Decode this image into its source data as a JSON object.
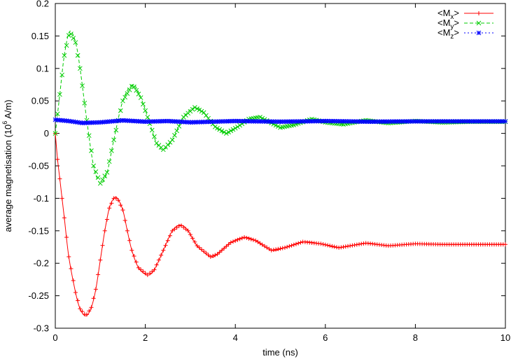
{
  "chart_data": {
    "type": "line",
    "title": "",
    "xlabel": "time (ns)",
    "ylabel_parts": {
      "prefix": "average magnetisation (10",
      "exponent": "6",
      "suffix": " A/m)"
    },
    "xlim": [
      0,
      10
    ],
    "ylim": [
      -0.3,
      0.2
    ],
    "x_ticks": [
      0,
      2,
      4,
      6,
      8,
      10
    ],
    "x_tick_labels": [
      "0",
      "2",
      "4",
      "6",
      "8",
      "10"
    ],
    "y_ticks": [
      0.2,
      0.15,
      0.1,
      0.05,
      0,
      -0.05,
      -0.1,
      -0.15,
      -0.2,
      -0.25,
      -0.3
    ],
    "y_tick_labels": [
      "0.2",
      "0.15",
      "0.1",
      "0.05",
      "0",
      "-0.05",
      "-0.1",
      "-0.15",
      "-0.2",
      "-0.25",
      "-0.3"
    ],
    "grid": false,
    "legend_position": "top-right",
    "sample_interval_ns": 0.05,
    "series": [
      {
        "name": "<Mx>",
        "label_base": "<M",
        "label_sub": "x",
        "label_end": ">",
        "color": "#ff0000",
        "line_style": "solid",
        "marker": "plus",
        "points": [
          [
            0,
            0
          ],
          [
            0.05,
            -0.04
          ],
          [
            0.1,
            -0.07
          ],
          [
            0.2,
            -0.13
          ],
          [
            0.3,
            -0.19
          ],
          [
            0.45,
            -0.245
          ],
          [
            0.55,
            -0.27
          ],
          [
            0.68,
            -0.281
          ],
          [
            0.8,
            -0.268
          ],
          [
            0.9,
            -0.24
          ],
          [
            1.0,
            -0.195
          ],
          [
            1.1,
            -0.15
          ],
          [
            1.2,
            -0.115
          ],
          [
            1.3,
            -0.1
          ],
          [
            1.38,
            -0.1
          ],
          [
            1.5,
            -0.118
          ],
          [
            1.6,
            -0.15
          ],
          [
            1.7,
            -0.18
          ],
          [
            1.85,
            -0.207
          ],
          [
            2.05,
            -0.218
          ],
          [
            2.2,
            -0.21
          ],
          [
            2.4,
            -0.18
          ],
          [
            2.6,
            -0.15
          ],
          [
            2.78,
            -0.141
          ],
          [
            2.95,
            -0.15
          ],
          [
            3.15,
            -0.173
          ],
          [
            3.45,
            -0.19
          ],
          [
            3.6,
            -0.186
          ],
          [
            3.9,
            -0.168
          ],
          [
            4.2,
            -0.16
          ],
          [
            4.45,
            -0.165
          ],
          [
            4.8,
            -0.18
          ],
          [
            5.1,
            -0.176
          ],
          [
            5.5,
            -0.167
          ],
          [
            5.9,
            -0.17
          ],
          [
            6.3,
            -0.176
          ],
          [
            6.9,
            -0.169
          ],
          [
            7.4,
            -0.173
          ],
          [
            8.0,
            -0.17
          ],
          [
            8.6,
            -0.171
          ],
          [
            9.2,
            -0.171
          ],
          [
            10.0,
            -0.171
          ]
        ]
      },
      {
        "name": "<My>",
        "label_base": "<M",
        "label_sub": "y",
        "label_end": ">",
        "color": "#00cc00",
        "line_style": "dashed",
        "marker": "cross",
        "points": [
          [
            0,
            0
          ],
          [
            0.1,
            0.06
          ],
          [
            0.2,
            0.12
          ],
          [
            0.32,
            0.157
          ],
          [
            0.45,
            0.14
          ],
          [
            0.55,
            0.1
          ],
          [
            0.7,
            0.02
          ],
          [
            0.85,
            -0.05
          ],
          [
            1.0,
            -0.077
          ],
          [
            1.15,
            -0.06
          ],
          [
            1.3,
            -0.01
          ],
          [
            1.5,
            0.05
          ],
          [
            1.72,
            0.075
          ],
          [
            1.9,
            0.055
          ],
          [
            2.1,
            0.015
          ],
          [
            2.25,
            -0.015
          ],
          [
            2.4,
            -0.025
          ],
          [
            2.6,
            -0.01
          ],
          [
            2.85,
            0.025
          ],
          [
            3.1,
            0.04
          ],
          [
            3.3,
            0.032
          ],
          [
            3.55,
            0.01
          ],
          [
            3.8,
            0.0
          ],
          [
            4.05,
            0.01
          ],
          [
            4.3,
            0.022
          ],
          [
            4.55,
            0.025
          ],
          [
            4.8,
            0.016
          ],
          [
            5.0,
            0.009
          ],
          [
            5.3,
            0.013
          ],
          [
            5.7,
            0.022
          ],
          [
            6.0,
            0.017
          ],
          [
            6.4,
            0.014
          ],
          [
            6.9,
            0.02
          ],
          [
            7.4,
            0.016
          ],
          [
            8.0,
            0.019
          ],
          [
            8.6,
            0.017
          ],
          [
            9.2,
            0.018
          ],
          [
            10.0,
            0.018
          ]
        ]
      },
      {
        "name": "<Mz>",
        "label_base": "<M",
        "label_sub": "z",
        "label_end": ">",
        "color": "#0000ff",
        "line_style": "dotted",
        "marker": "star",
        "points": [
          [
            0,
            0.021
          ],
          [
            0.3,
            0.019
          ],
          [
            0.6,
            0.016
          ],
          [
            1.0,
            0.017
          ],
          [
            1.5,
            0.02
          ],
          [
            2.0,
            0.018
          ],
          [
            2.5,
            0.019
          ],
          [
            3.0,
            0.017
          ],
          [
            4.0,
            0.019
          ],
          [
            5.0,
            0.018
          ],
          [
            6.0,
            0.019
          ],
          [
            7.0,
            0.018
          ],
          [
            8.0,
            0.0185
          ],
          [
            9.0,
            0.0185
          ],
          [
            10.0,
            0.0185
          ]
        ]
      }
    ]
  }
}
